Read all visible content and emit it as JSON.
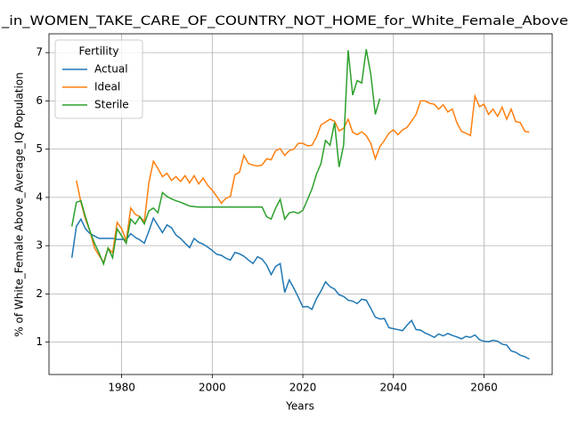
{
  "chart_data": {
    "type": "line",
    "title": "_in_WOMEN_TAKE_CARE_OF_COUNTRY_NOT_HOME_for_White_Female_Above",
    "xlabel": "Years",
    "ylabel": "% of White_Female Above_Average_IQ Population",
    "legend_title": "Fertility",
    "legend": "upper left",
    "grid": true,
    "x": [
      1969,
      1970,
      1971,
      1972,
      1973,
      1974,
      1975,
      1976,
      1977,
      1978,
      1979,
      1980,
      1981,
      1982,
      1983,
      1984,
      1985,
      1986,
      1987,
      1988,
      1989,
      1990,
      1991,
      1992,
      1993,
      1994,
      1995,
      1996,
      1997,
      1998,
      1999,
      2000,
      2001,
      2002,
      2003,
      2004,
      2005,
      2006,
      2007,
      2008,
      2009,
      2010,
      2011,
      2012,
      2013,
      2014,
      2015,
      2016,
      2017,
      2018,
      2019,
      2020,
      2021,
      2022,
      2023,
      2024,
      2025,
      2026,
      2027,
      2028,
      2029,
      2030,
      2031,
      2032,
      2033,
      2034,
      2035,
      2036,
      2037,
      2038,
      2039,
      2040,
      2041,
      2042,
      2043,
      2044,
      2045,
      2046,
      2047,
      2048,
      2049,
      2050,
      2051,
      2052,
      2053,
      2054,
      2055,
      2056,
      2057,
      2058,
      2059,
      2060,
      2061,
      2062,
      2063,
      2064,
      2065,
      2066,
      2067,
      2068,
      2069,
      2070
    ],
    "xlim": [
      1963.95,
      2075.05
    ],
    "xticks": [
      1980,
      2000,
      2020,
      2040,
      2060
    ],
    "ylim": [
      0.33,
      7.39
    ],
    "yticks": [
      1,
      2,
      3,
      4,
      5,
      6,
      7
    ],
    "series": [
      {
        "name": "Actual",
        "color": "#1f77b4",
        "values": [
          2.75,
          3.4,
          3.55,
          3.35,
          3.25,
          3.2,
          3.15,
          3.15,
          3.15,
          3.15,
          3.13,
          3.13,
          3.12,
          3.25,
          3.17,
          3.12,
          3.05,
          3.3,
          3.57,
          3.42,
          3.27,
          3.43,
          3.37,
          3.22,
          3.15,
          3.05,
          2.96,
          3.15,
          3.07,
          3.03,
          2.97,
          2.9,
          2.82,
          2.8,
          2.74,
          2.7,
          2.86,
          2.83,
          2.78,
          2.7,
          2.63,
          2.77,
          2.72,
          2.6,
          2.4,
          2.57,
          2.63,
          2.03,
          2.29,
          2.12,
          1.93,
          1.73,
          1.74,
          1.68,
          1.9,
          2.06,
          2.25,
          2.15,
          2.1,
          1.98,
          1.95,
          1.87,
          1.85,
          1.8,
          1.89,
          1.87,
          1.7,
          1.52,
          1.48,
          1.49,
          1.3,
          1.28,
          1.26,
          1.24,
          1.35,
          1.45,
          1.26,
          1.25,
          1.19,
          1.15,
          1.1,
          1.17,
          1.13,
          1.18,
          1.14,
          1.11,
          1.07,
          1.12,
          1.1,
          1.15,
          1.05,
          1.02,
          1.01,
          1.04,
          1.02,
          0.96,
          0.94,
          0.82,
          0.79,
          0.73,
          0.7,
          0.65
        ]
      },
      {
        "name": "Ideal",
        "color": "#ff7f0e",
        "values": [
          null,
          4.35,
          3.9,
          3.55,
          3.3,
          2.95,
          2.8,
          2.65,
          2.95,
          2.85,
          3.48,
          3.35,
          3.1,
          3.78,
          3.65,
          3.6,
          3.5,
          4.3,
          4.75,
          4.6,
          4.43,
          4.5,
          4.35,
          4.43,
          4.33,
          4.45,
          4.3,
          4.45,
          4.28,
          4.4,
          4.25,
          4.15,
          4.02,
          3.88,
          3.98,
          4.02,
          4.47,
          4.52,
          4.87,
          4.7,
          4.67,
          4.65,
          4.67,
          4.8,
          4.78,
          4.97,
          5.01,
          4.87,
          4.97,
          5.0,
          5.12,
          5.12,
          5.07,
          5.08,
          5.25,
          5.5,
          5.56,
          5.62,
          5.58,
          5.38,
          5.43,
          5.62,
          5.35,
          5.3,
          5.36,
          5.28,
          5.12,
          4.8,
          5.05,
          5.18,
          5.33,
          5.4,
          5.3,
          5.4,
          5.45,
          5.58,
          5.72,
          6.0,
          6.0,
          5.95,
          5.93,
          5.83,
          5.92,
          5.77,
          5.83,
          5.55,
          5.37,
          5.33,
          5.28,
          6.1,
          5.88,
          5.93,
          5.72,
          5.83,
          5.68,
          5.87,
          5.62,
          5.83,
          5.57,
          5.55,
          5.37,
          5.35
        ]
      },
      {
        "name": "Sterile",
        "color": "#2ca02c",
        "values": [
          3.4,
          3.9,
          3.93,
          3.6,
          3.3,
          3.05,
          2.85,
          2.62,
          2.95,
          2.75,
          3.35,
          3.2,
          3.05,
          3.55,
          3.45,
          3.6,
          3.45,
          3.72,
          3.78,
          3.68,
          4.1,
          4.02,
          3.97,
          3.93,
          3.9,
          3.86,
          3.82,
          3.81,
          3.8,
          3.8,
          3.8,
          3.8,
          3.8,
          3.8,
          3.8,
          3.8,
          3.8,
          3.8,
          3.8,
          3.8,
          3.8,
          3.8,
          3.8,
          3.6,
          3.55,
          3.78,
          3.96,
          3.55,
          3.68,
          3.7,
          3.67,
          3.73,
          3.95,
          4.17,
          4.48,
          4.7,
          5.18,
          5.08,
          5.55,
          4.63,
          5.08,
          7.05,
          6.12,
          6.42,
          6.37,
          7.07,
          6.55,
          5.72,
          6.05,
          null,
          null,
          null,
          null,
          null,
          null,
          null,
          null,
          null,
          null,
          null,
          null,
          null,
          null,
          null,
          null,
          null,
          null,
          null,
          null,
          null,
          null,
          null,
          null,
          null,
          null,
          null,
          null,
          null,
          null,
          null,
          null,
          null
        ]
      }
    ]
  }
}
